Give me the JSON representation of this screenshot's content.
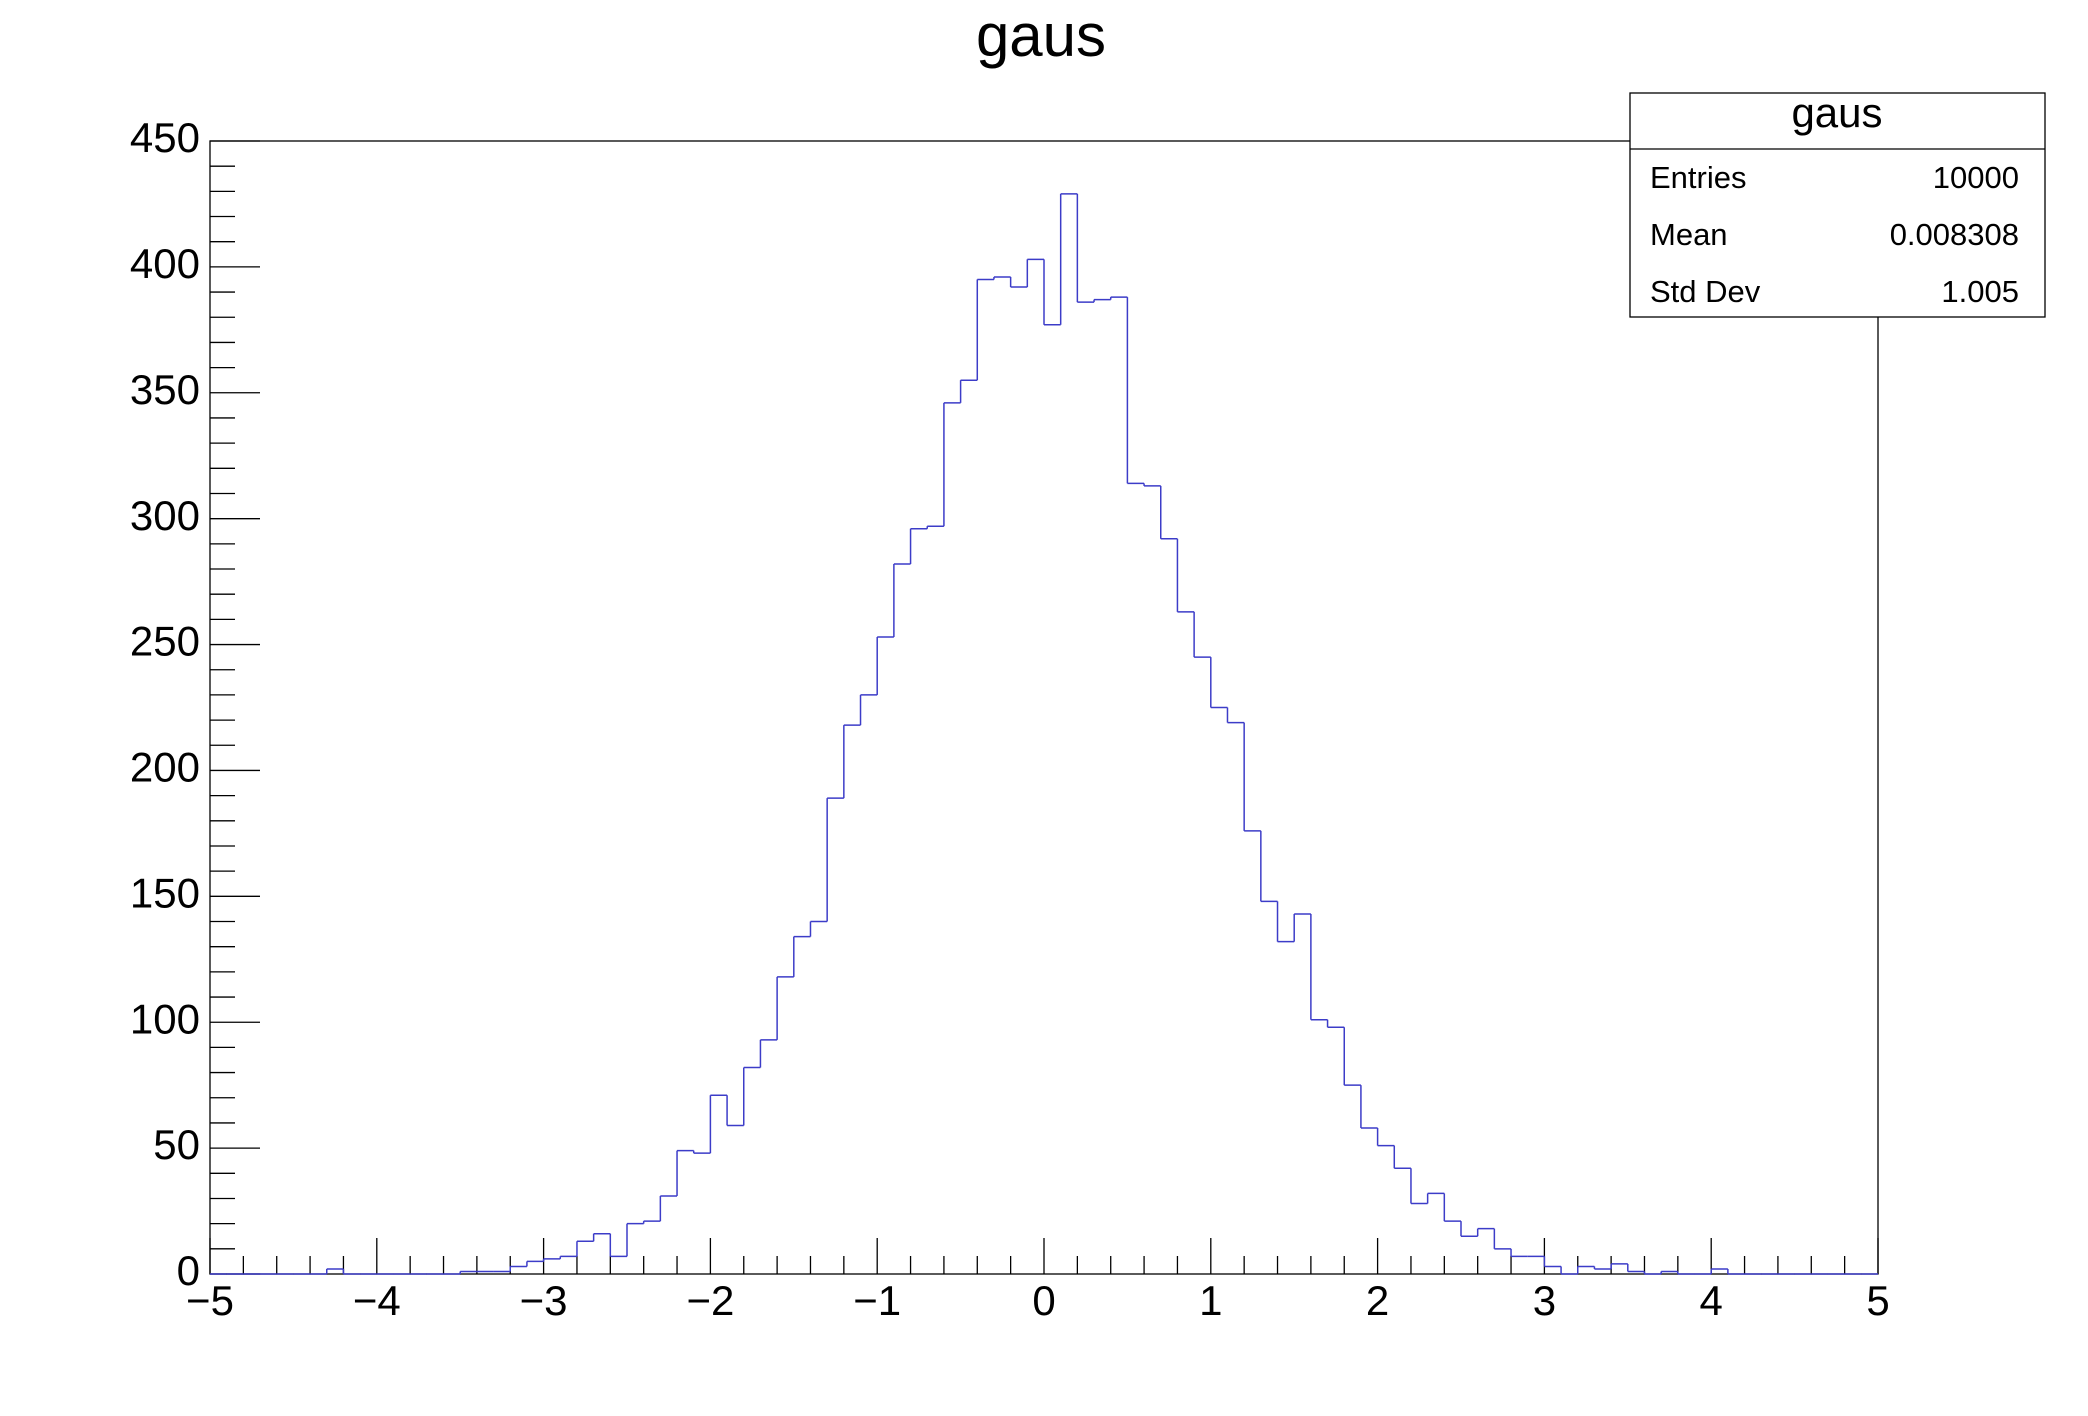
{
  "chart_data": {
    "type": "histogram",
    "title": "gaus",
    "color": "#3c3cc8",
    "bins": [
      -5.0,
      -4.9,
      -4.8,
      -4.7,
      -4.6,
      -4.5,
      -4.4,
      -4.3,
      -4.2,
      -4.1,
      -4.0,
      -3.9,
      -3.8,
      -3.7,
      -3.6,
      -3.5,
      -3.4,
      -3.3,
      -3.2,
      -3.1,
      -3.0,
      -2.9,
      -2.8,
      -2.7,
      -2.6,
      -2.5,
      -2.4,
      -2.3,
      -2.2,
      -2.1,
      -2.0,
      -1.9,
      -1.8,
      -1.7,
      -1.6,
      -1.5,
      -1.4,
      -1.3,
      -1.2,
      -1.1,
      -1.0,
      -0.9,
      -0.8,
      -0.7,
      -0.6,
      -0.5,
      -0.4,
      -0.3,
      -0.2,
      -0.1,
      0.0,
      0.1,
      0.2,
      0.3,
      0.4,
      0.5,
      0.6,
      0.7,
      0.8,
      0.9,
      1.0,
      1.1,
      1.2,
      1.3,
      1.4,
      1.5,
      1.6,
      1.7,
      1.8,
      1.9,
      2.0,
      2.1,
      2.2,
      2.3,
      2.4,
      2.5,
      2.6,
      2.7,
      2.8,
      2.9,
      3.0,
      3.1,
      3.2,
      3.3,
      3.4,
      3.5,
      3.6,
      3.7,
      3.8,
      3.9,
      4.0,
      4.1,
      4.2,
      4.3,
      4.4,
      4.5,
      4.6,
      4.7,
      4.8,
      4.9,
      5.0
    ],
    "values": [
      0,
      0,
      0,
      0,
      0,
      0,
      0,
      2,
      0,
      0,
      0,
      0,
      0,
      0,
      0,
      1,
      1,
      1,
      3,
      5,
      6,
      7,
      13,
      16,
      7,
      20,
      21,
      31,
      49,
      48,
      71,
      59,
      82,
      93,
      118,
      134,
      140,
      189,
      218,
      230,
      253,
      282,
      296,
      297,
      346,
      355,
      395,
      396,
      392,
      403,
      377,
      429,
      386,
      387,
      388,
      314,
      313,
      292,
      263,
      245,
      225,
      219,
      176,
      148,
      132,
      143,
      101,
      98,
      75,
      58,
      51,
      42,
      28,
      32,
      21,
      15,
      18,
      10,
      7,
      7,
      3,
      0,
      3,
      2,
      4,
      1,
      0,
      1,
      0,
      0,
      2,
      0,
      0,
      0,
      0,
      0,
      0,
      0,
      0,
      0
    ],
    "xlim": [
      -5,
      5
    ],
    "xticks": [
      {
        "value": -5,
        "label": "−5"
      },
      {
        "value": -4,
        "label": "−4"
      },
      {
        "value": -3,
        "label": "−3"
      },
      {
        "value": -2,
        "label": "−2"
      },
      {
        "value": -1,
        "label": "−1"
      },
      0,
      1,
      2,
      3,
      4,
      5
    ],
    "ylim": [
      0,
      450
    ],
    "yticks": [
      0,
      50,
      100,
      150,
      200,
      250,
      300,
      350,
      400,
      450
    ],
    "stats": {
      "title": "gaus",
      "rows": [
        {
          "label": "Entries",
          "value": 10000
        },
        {
          "label": "Mean",
          "value": 0.008308
        },
        {
          "label": "Std Dev",
          "value": 1.005
        }
      ]
    }
  }
}
